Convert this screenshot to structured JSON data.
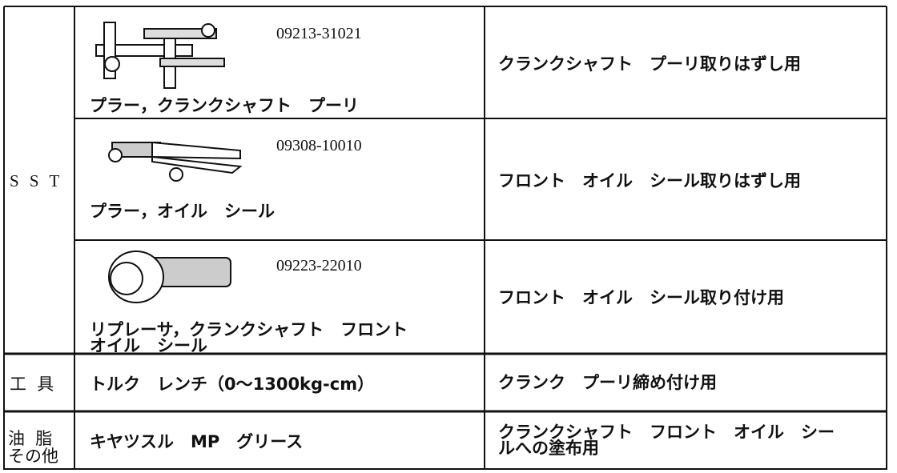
{
  "sst": {
    "label": "S S T",
    "tools": [
      {
        "part_number": "09213-31021",
        "name": "プラー，クランクシャフト　プーリ",
        "purpose": "クランクシャフト　プーリ取りはずし用"
      },
      {
        "part_number": "09308-10010",
        "name": "プラー，オイル　シール",
        "purpose": "フロント　オイル　シール取りはずし用"
      },
      {
        "part_number": "09223-22010",
        "name_lines": [
          "リプレーサ，クランクシャフト　フロント",
          "オイル　シール"
        ],
        "purpose": "フロント　オイル　シール取り付け用"
      }
    ]
  },
  "tools": {
    "label": "工 具",
    "name": "トルク　レンチ（0～1300kg-cm）",
    "purpose": "クランク　プーリ締め付け用"
  },
  "grease": {
    "label_lines": [
      "油 脂",
      "その他"
    ],
    "name": "キヤツスル　MP　グリース",
    "purpose_lines": [
      "クランクシャフト　フロント　オイル　シー",
      "ルへの塗布用"
    ]
  }
}
